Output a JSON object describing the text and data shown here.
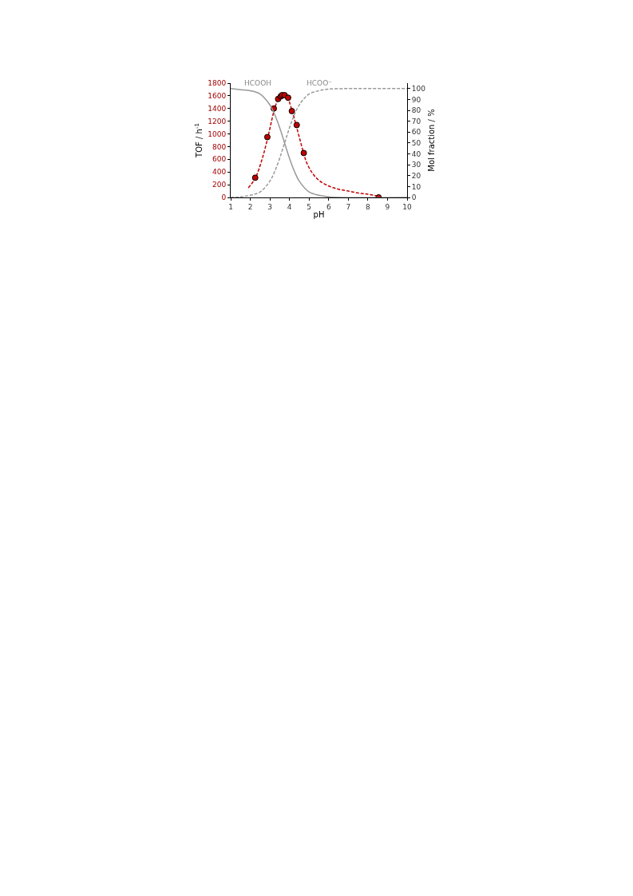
{
  "chart_data": {
    "type": "line",
    "xlabel": "pH",
    "ylabel": "TOF / h$^{-1}$",
    "y2label": "Mol fraction / %",
    "xlim": [
      1,
      10
    ],
    "xticks": [
      1,
      2,
      3,
      4,
      5,
      6,
      7,
      8,
      9,
      10
    ],
    "ylim": [
      0,
      1800
    ],
    "yticks": [
      0,
      200,
      400,
      600,
      800,
      1000,
      1200,
      1400,
      1600,
      1800
    ],
    "y2lim": [
      0,
      105
    ],
    "y2ticks": [
      0,
      10,
      20,
      30,
      40,
      50,
      60,
      70,
      80,
      90,
      100
    ],
    "annotations": [
      "HCOOH",
      "HCOO⁻"
    ],
    "series": [
      {
        "axis": "y2",
        "color": "#999999",
        "line_style": "solid",
        "marker": "none",
        "x": [
          1,
          1.5,
          2,
          2.5,
          3,
          3.25,
          3.5,
          3.75,
          4,
          4.25,
          4.5,
          5,
          5.5,
          6,
          6.5,
          10
        ],
        "values": [
          100,
          99,
          98,
          95,
          85,
          76,
          64,
          50,
          36,
          24,
          15,
          5,
          2,
          0.5,
          0,
          0
        ]
      },
      {
        "axis": "y2",
        "color": "#999999",
        "line_style": "dashed",
        "marker": "none",
        "x": [
          1,
          1.5,
          2,
          2.5,
          3,
          3.25,
          3.5,
          3.75,
          4,
          4.25,
          4.5,
          5,
          5.5,
          6,
          7,
          10
        ],
        "values": [
          0,
          0.5,
          2,
          5,
          15,
          24,
          36,
          50,
          64,
          76,
          85,
          95,
          98,
          99.5,
          100,
          100
        ]
      },
      {
        "color": "#c00000",
        "line_style": "dashed",
        "marker": "none",
        "x": [
          1.9,
          2.25,
          2.6,
          2.9,
          3.2,
          3.4,
          3.6,
          3.75,
          3.9,
          4.1,
          4.3,
          4.5,
          4.7,
          4.9,
          5.2,
          5.5,
          6,
          6.5,
          7,
          7.5,
          8,
          8.5
        ],
        "values": [
          150,
          300,
          600,
          950,
          1350,
          1530,
          1600,
          1610,
          1570,
          1400,
          1180,
          950,
          720,
          530,
          370,
          270,
          180,
          130,
          100,
          70,
          50,
          20
        ]
      },
      {
        "type": "scatter",
        "color": "#c00000",
        "marker": "circle",
        "x": [
          2.25,
          2.87,
          3.2,
          3.42,
          3.55,
          3.62,
          3.75,
          3.93,
          4.12,
          4.37,
          4.73,
          8.55
        ],
        "values": [
          310,
          950,
          1400,
          1550,
          1590,
          1610,
          1610,
          1570,
          1360,
          1140,
          700,
          0
        ]
      }
    ]
  }
}
